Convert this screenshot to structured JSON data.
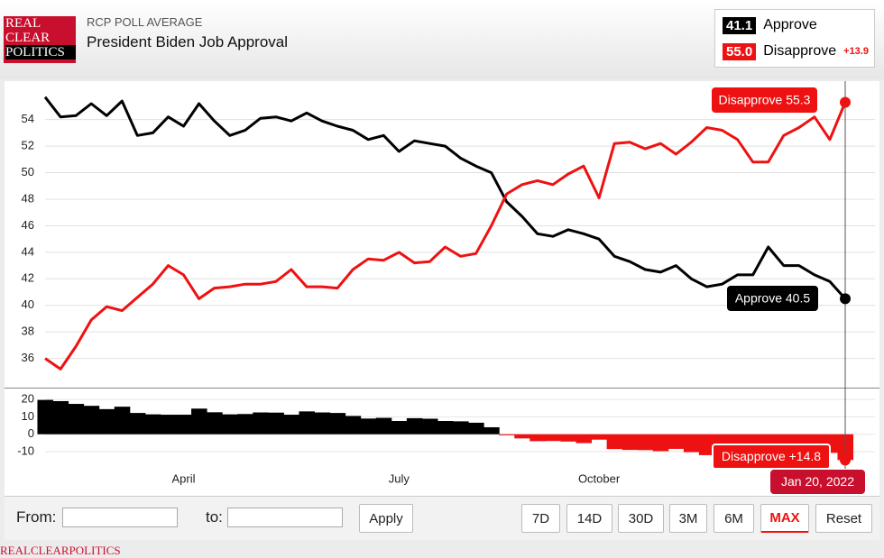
{
  "header": {
    "logo": [
      "REAL",
      "CLEAR",
      "POLITICS"
    ],
    "kicker": "RCP POLL AVERAGE",
    "title": "President Biden Job Approval",
    "legend": [
      {
        "value": "41.1",
        "name": "Approve",
        "color": "#000000"
      },
      {
        "value": "55.0",
        "name": "Disapprove",
        "color": "#ee1111",
        "spread": "+13.9"
      }
    ]
  },
  "chart_data": {
    "type": "line",
    "categories": [
      null,
      null,
      null,
      null,
      null,
      null,
      null,
      null,
      null,
      "April",
      null,
      null,
      null,
      null,
      null,
      null,
      null,
      null,
      null,
      null,
      null,
      null,
      null,
      "July",
      null,
      null,
      null,
      null,
      null,
      null,
      null,
      null,
      null,
      null,
      null,
      null,
      "October",
      null,
      null,
      null,
      null,
      null,
      null,
      null,
      null,
      null,
      null,
      null,
      null,
      null,
      null,
      null,
      null
    ],
    "series": [
      {
        "name": "Approve",
        "color": "#000000",
        "values": [
          55.7,
          54.2,
          54.3,
          55.2,
          54.3,
          55.4,
          52.8,
          53,
          54.2,
          53.5,
          55.2,
          53.9,
          52.8,
          53.2,
          54.1,
          54.2,
          53.9,
          54.5,
          53.9,
          53.5,
          53.2,
          52.5,
          52.8,
          51.6,
          52.4,
          52.2,
          52,
          51.1,
          50.5,
          50,
          47.8,
          46.7,
          45.4,
          45.2,
          45.7,
          45.4,
          45,
          43.7,
          43.3,
          42.7,
          42.5,
          43,
          42,
          41.4,
          41.6,
          42.3,
          42.3,
          44.4,
          43,
          43,
          42.3,
          41.8,
          40.5
        ]
      },
      {
        "name": "Disapprove",
        "color": "#ee1111",
        "values": [
          36,
          35.2,
          36.9,
          38.9,
          39.9,
          39.6,
          40.6,
          41.6,
          43,
          42.3,
          40.5,
          41.3,
          41.4,
          41.6,
          41.6,
          41.8,
          42.7,
          41.4,
          41.4,
          41.3,
          42.7,
          43.5,
          43.4,
          44,
          43.2,
          43.3,
          44.4,
          43.7,
          43.9,
          46,
          48.4,
          49.1,
          49.4,
          49.1,
          49.9,
          50.5,
          48.1,
          52.2,
          52.3,
          51.8,
          52.2,
          51.4,
          52.3,
          53.4,
          53.2,
          52.5,
          50.8,
          50.8,
          52.8,
          53.4,
          54.2,
          52.5,
          55.3
        ]
      }
    ],
    "spread": {
      "positive_color": "#000000",
      "negative_color": "#ee1111",
      "values": [
        19.7,
        19,
        17.4,
        16.3,
        14.4,
        15.8,
        12.2,
        11.4,
        11.2,
        11.2,
        14.7,
        12.6,
        11.4,
        11.6,
        12.5,
        12.4,
        11.2,
        13.1,
        12.5,
        12.2,
        10.5,
        9,
        9.4,
        7.6,
        9.2,
        8.9,
        7.6,
        7.4,
        6.6,
        4,
        -0.6,
        -2.4,
        -4,
        -3.9,
        -4.2,
        -5.1,
        -3.1,
        -8.5,
        -9,
        -9.1,
        -9.7,
        -8.4,
        -10.3,
        -12,
        -11.6,
        -10.2,
        -8.5,
        -6.4,
        -9.8,
        -10.4,
        -11.9,
        -10.7,
        -14.8
      ],
      "ylim": [
        -19.8,
        25.7
      ],
      "yticks": [
        20,
        10,
        0,
        -10
      ]
    },
    "ylim": [
      33.8,
      56.9
    ],
    "yticks": [
      36,
      38,
      40,
      42,
      44,
      46,
      48,
      50,
      52,
      54
    ],
    "grid": true,
    "annotations": [
      {
        "text": "Disapprove 55.3"
      },
      {
        "text": "Approve 40.5"
      },
      {
        "text": "Disapprove +14.8"
      },
      {
        "text": "Jan 20, 2022"
      }
    ]
  },
  "controls": {
    "from": "From:",
    "to": "to:",
    "apply": "Apply",
    "ranges": [
      "7D",
      "14D",
      "30D",
      "3M",
      "6M",
      "MAX"
    ],
    "active": "MAX",
    "reset": "Reset"
  },
  "footer": "REALCLEARPOLITICS"
}
